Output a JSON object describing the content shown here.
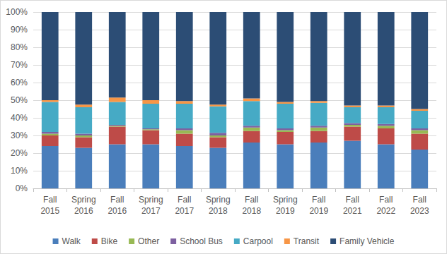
{
  "chart_data": {
    "type": "bar",
    "stacked": true,
    "grid": true,
    "legend": "bottom",
    "categories": [
      "Fall 2015",
      "Spring 2016",
      "Fall 2016",
      "Spring 2017",
      "Fall 2017",
      "Spring 2018",
      "Fall 2018",
      "Spring 2019",
      "Fall 2019",
      "Fall 2021",
      "Fall 2022",
      "Fall 2023"
    ],
    "ylim": [
      0,
      100
    ],
    "yticks": [
      {
        "value": 0,
        "label": "0%"
      },
      {
        "value": 10,
        "label": "10%"
      },
      {
        "value": 20,
        "label": "20%"
      },
      {
        "value": 30,
        "label": "30%"
      },
      {
        "value": 40,
        "label": "40%"
      },
      {
        "value": 50,
        "label": "50%"
      },
      {
        "value": 60,
        "label": "60%"
      },
      {
        "value": 70,
        "label": "70%"
      },
      {
        "value": 80,
        "label": "80%"
      },
      {
        "value": 90,
        "label": "90%"
      },
      {
        "value": 100,
        "label": "100%"
      }
    ],
    "series": [
      {
        "name": "Walk",
        "color": "#4a7ebb",
        "values": [
          24,
          23,
          25,
          25,
          24,
          23,
          26,
          25,
          26,
          27,
          25,
          22
        ]
      },
      {
        "name": "Bike",
        "color": "#be4b48",
        "values": [
          6,
          6,
          10,
          8,
          7,
          6,
          6.5,
          7,
          6.5,
          8,
          9,
          9
        ]
      },
      {
        "name": "Other",
        "color": "#98b954",
        "values": [
          1,
          1,
          0.5,
          0.5,
          2,
          1,
          2,
          1,
          2,
          1,
          1.5,
          2
        ]
      },
      {
        "name": "School Bus",
        "color": "#7d60a0",
        "values": [
          1,
          1,
          0.5,
          0.5,
          1,
          1.5,
          1,
          1,
          1,
          1,
          1,
          1
        ]
      },
      {
        "name": "Carpool",
        "color": "#46aac5",
        "values": [
          17,
          15,
          13,
          14,
          14,
          15,
          14,
          14,
          13,
          9,
          9.5,
          10
        ]
      },
      {
        "name": "Transit",
        "color": "#f79646",
        "values": [
          1,
          1.5,
          2.5,
          2,
          1.5,
          1,
          1.5,
          1,
          1,
          1,
          1,
          1
        ]
      },
      {
        "name": "Family Vehicle",
        "color": "#2c4d75",
        "values": [
          50,
          52.5,
          48.5,
          50,
          50.5,
          52.5,
          49,
          51,
          50.5,
          53,
          53,
          55
        ]
      }
    ]
  }
}
